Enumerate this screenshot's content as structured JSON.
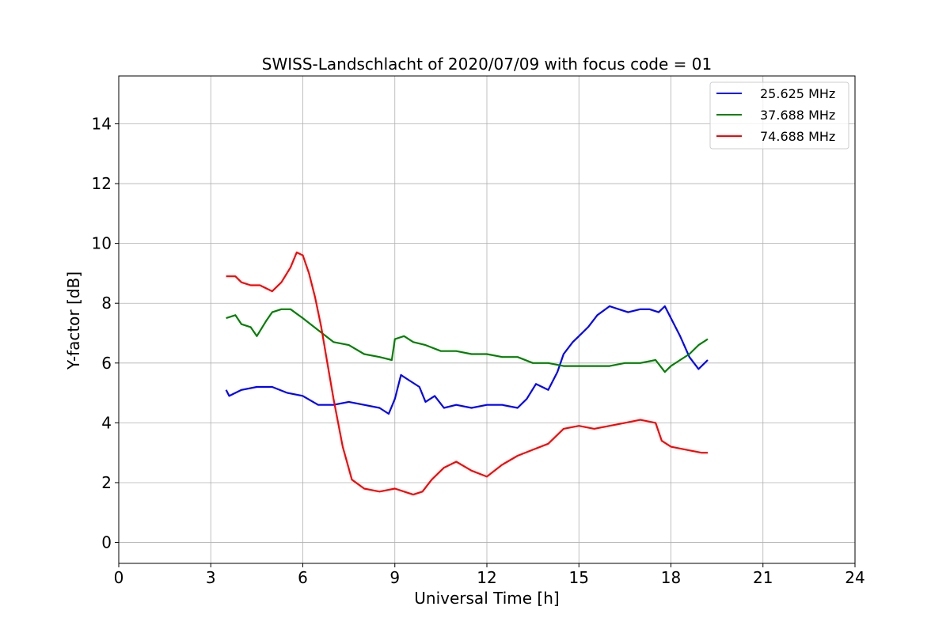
{
  "chart_data": {
    "type": "line",
    "title": "SWISS-Landschlacht of 2020/07/09 with focus code = 01",
    "xlabel": "Universal Time [h]",
    "ylabel": "Y-factor [dB]",
    "xlim": [
      0,
      24
    ],
    "ylim": [
      -0.7,
      15.6
    ],
    "xticks": [
      0,
      3,
      6,
      9,
      12,
      15,
      18,
      21,
      24
    ],
    "yticks": [
      0,
      2,
      4,
      6,
      8,
      10,
      12,
      14
    ],
    "grid": true,
    "legend_position": "top-right",
    "series": [
      {
        "name": "25.625 MHz",
        "color": "#0000ff",
        "x": [
          3.5,
          3.6,
          4.0,
          4.5,
          5.0,
          5.5,
          6.0,
          6.5,
          7.0,
          7.5,
          8.0,
          8.5,
          8.8,
          9.0,
          9.2,
          9.5,
          9.8,
          10.0,
          10.3,
          10.6,
          11.0,
          11.5,
          12.0,
          12.5,
          13.0,
          13.3,
          13.6,
          14.0,
          14.3,
          14.5,
          14.8,
          15.0,
          15.3,
          15.6,
          16.0,
          16.3,
          16.6,
          17.0,
          17.3,
          17.6,
          17.8,
          18.0,
          18.3,
          18.6,
          18.9,
          19.2
        ],
        "y": [
          5.1,
          4.9,
          5.1,
          5.2,
          5.2,
          5.0,
          4.9,
          4.6,
          4.6,
          4.7,
          4.6,
          4.5,
          4.3,
          4.8,
          5.6,
          5.4,
          5.2,
          4.7,
          4.9,
          4.5,
          4.6,
          4.5,
          4.6,
          4.6,
          4.5,
          4.8,
          5.3,
          5.1,
          5.7,
          6.3,
          6.7,
          6.9,
          7.2,
          7.6,
          7.9,
          7.8,
          7.7,
          7.8,
          7.8,
          7.7,
          7.9,
          7.5,
          6.9,
          6.2,
          5.8,
          6.1
        ]
      },
      {
        "name": "37.688 MHz",
        "color": "#008000",
        "x": [
          3.5,
          3.8,
          4.0,
          4.3,
          4.5,
          4.8,
          5.0,
          5.3,
          5.6,
          6.0,
          6.5,
          7.0,
          7.5,
          8.0,
          8.5,
          8.9,
          9.0,
          9.3,
          9.6,
          10.0,
          10.5,
          11.0,
          11.5,
          12.0,
          12.5,
          13.0,
          13.5,
          14.0,
          14.5,
          15.0,
          15.5,
          16.0,
          16.5,
          17.0,
          17.5,
          17.8,
          18.0,
          18.3,
          18.6,
          18.9,
          19.2
        ],
        "y": [
          7.5,
          7.6,
          7.3,
          7.2,
          6.9,
          7.4,
          7.7,
          7.8,
          7.8,
          7.5,
          7.1,
          6.7,
          6.6,
          6.3,
          6.2,
          6.1,
          6.8,
          6.9,
          6.7,
          6.6,
          6.4,
          6.4,
          6.3,
          6.3,
          6.2,
          6.2,
          6.0,
          6.0,
          5.9,
          5.9,
          5.9,
          5.9,
          6.0,
          6.0,
          6.1,
          5.7,
          5.9,
          6.1,
          6.3,
          6.6,
          6.8
        ]
      },
      {
        "name": "74.688 MHz",
        "color": "#ff0000",
        "x": [
          3.5,
          3.8,
          4.0,
          4.3,
          4.6,
          5.0,
          5.3,
          5.6,
          5.8,
          6.0,
          6.2,
          6.4,
          6.6,
          6.8,
          7.0,
          7.3,
          7.6,
          8.0,
          8.5,
          9.0,
          9.3,
          9.6,
          9.9,
          10.2,
          10.6,
          11.0,
          11.5,
          12.0,
          12.5,
          13.0,
          13.5,
          14.0,
          14.5,
          15.0,
          15.5,
          16.0,
          16.5,
          17.0,
          17.5,
          17.7,
          18.0,
          18.5,
          19.0,
          19.2
        ],
        "y": [
          8.9,
          8.9,
          8.7,
          8.6,
          8.6,
          8.4,
          8.7,
          9.2,
          9.7,
          9.6,
          9.0,
          8.2,
          7.2,
          6.0,
          4.8,
          3.2,
          2.1,
          1.8,
          1.7,
          1.8,
          1.7,
          1.6,
          1.7,
          2.1,
          2.5,
          2.7,
          2.4,
          2.2,
          2.6,
          2.9,
          3.1,
          3.3,
          3.8,
          3.9,
          3.8,
          3.9,
          4.0,
          4.1,
          4.0,
          3.4,
          3.2,
          3.1,
          3.0,
          3.0
        ]
      }
    ]
  }
}
